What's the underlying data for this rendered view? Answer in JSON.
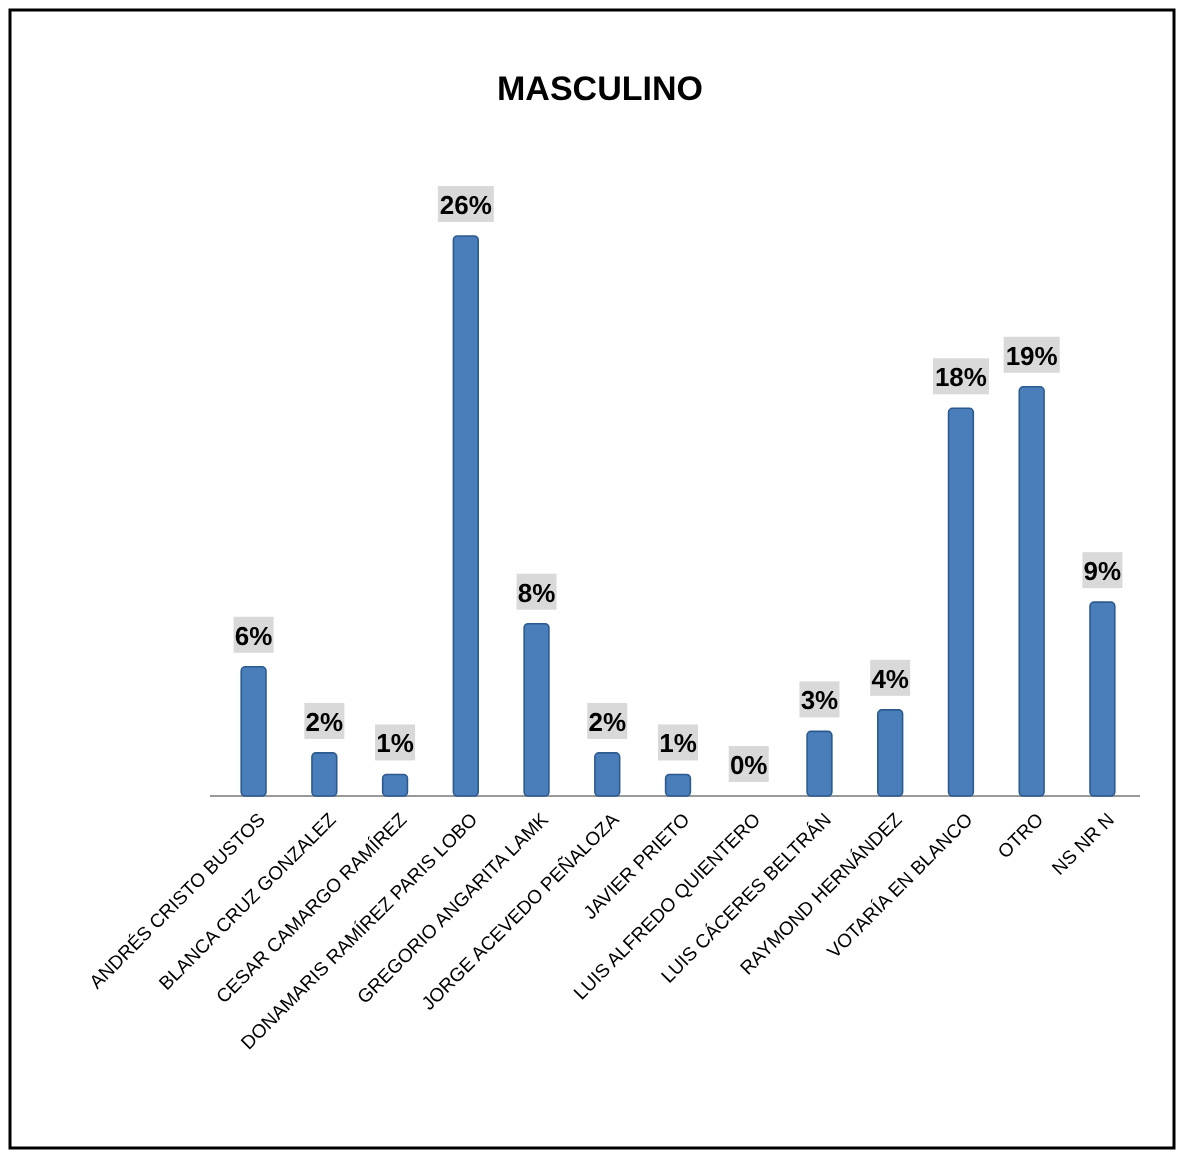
{
  "chart_data": {
    "type": "bar",
    "title": "MASCULINO",
    "categories": [
      "ANDRÉS CRISTO BUSTOS",
      "BLANCA CRUZ GONZALEZ",
      "CESAR CAMARGO RAMÍREZ",
      "DONAMARIS RAMÍREZ PARIS LOBO",
      "GREGORIO ANGARITA LAMK",
      "JORGE ACEVEDO PEÑALOZA",
      "JAVIER PRIETO",
      "LUIS ALFREDO QUIENTERO",
      "LUIS CÁCERES BELTRÁN",
      "RAYMOND HERNÁNDEZ",
      "VOTARÍA EN BLANCO",
      "OTRO",
      "NS NR N"
    ],
    "values": [
      6,
      2,
      1,
      26,
      8,
      2,
      1,
      0,
      3,
      4,
      18,
      19,
      9
    ],
    "value_labels": [
      "6%",
      "2%",
      "1%",
      "26%",
      "8%",
      "2%",
      "1%",
      "0%",
      "3%",
      "4%",
      "18%",
      "19%",
      "9%"
    ],
    "color": "#4a7ebb"
  }
}
